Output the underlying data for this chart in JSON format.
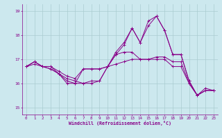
{
  "title": "",
  "xlabel": "Windchill (Refroidissement éolien,°C)",
  "ylabel": "",
  "background_color": "#cce8ee",
  "grid_color": "#aaccd0",
  "line_color": "#880088",
  "axes_color": "#880088",
  "xlim": [
    -0.5,
    23.5
  ],
  "ylim": [
    14.7,
    19.3
  ],
  "xticks": [
    0,
    1,
    2,
    3,
    4,
    5,
    6,
    7,
    8,
    9,
    10,
    11,
    12,
    13,
    14,
    15,
    16,
    17,
    18,
    19,
    20,
    21,
    22,
    23
  ],
  "yticks": [
    15,
    16,
    17,
    18,
    19
  ],
  "series": [
    [
      16.7,
      16.9,
      16.7,
      16.7,
      16.5,
      16.3,
      16.2,
      16.6,
      16.6,
      16.6,
      16.7,
      17.2,
      17.6,
      18.3,
      17.7,
      18.4,
      18.8,
      18.2,
      17.2,
      17.2,
      16.1,
      15.5,
      15.7,
      15.7
    ],
    [
      16.7,
      16.9,
      16.7,
      16.6,
      16.4,
      16.1,
      16.0,
      16.6,
      16.6,
      16.6,
      16.7,
      17.3,
      17.7,
      18.3,
      17.7,
      18.6,
      18.8,
      18.2,
      17.2,
      17.2,
      16.1,
      15.5,
      15.7,
      15.7
    ],
    [
      16.7,
      16.9,
      16.7,
      16.7,
      16.4,
      16.0,
      16.0,
      16.0,
      16.1,
      16.1,
      16.7,
      17.2,
      17.3,
      17.3,
      17.0,
      17.0,
      17.0,
      17.0,
      16.7,
      16.7,
      16.0,
      15.5,
      15.7,
      15.7
    ],
    [
      16.7,
      16.8,
      16.7,
      16.6,
      16.4,
      16.2,
      16.1,
      16.0,
      16.0,
      16.1,
      16.7,
      16.8,
      16.9,
      17.0,
      17.0,
      17.0,
      17.1,
      17.1,
      16.9,
      16.9,
      16.0,
      15.5,
      15.8,
      15.7
    ]
  ]
}
